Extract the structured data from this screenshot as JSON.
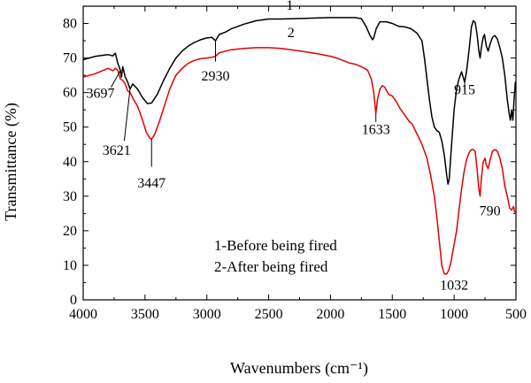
{
  "chart_data": {
    "type": "line",
    "xlabel": "Wavenumbers (cm⁻¹)",
    "ylabel": "Transmittance (%)",
    "xlim": [
      4000,
      500
    ],
    "ylim": [
      0,
      85
    ],
    "x_ticks": [
      4000,
      3500,
      3000,
      2500,
      2000,
      1500,
      1000,
      500
    ],
    "y_ticks": [
      0,
      10,
      20,
      30,
      40,
      50,
      60,
      70,
      80
    ],
    "grid": false,
    "series": [
      {
        "name": "1",
        "color": "#000000",
        "points": [
          [
            4000,
            69.5
          ],
          [
            3900,
            70.5
          ],
          [
            3800,
            71.0
          ],
          [
            3760,
            70.6
          ],
          [
            3740,
            71.4
          ],
          [
            3720,
            68.5
          ],
          [
            3700,
            66.5
          ],
          [
            3690,
            64.5
          ],
          [
            3680,
            67.5
          ],
          [
            3660,
            64.5
          ],
          [
            3640,
            63.0
          ],
          [
            3621,
            61.0
          ],
          [
            3600,
            62.5
          ],
          [
            3560,
            61.0
          ],
          [
            3520,
            58.5
          ],
          [
            3480,
            56.8
          ],
          [
            3447,
            57.0
          ],
          [
            3400,
            59.5
          ],
          [
            3350,
            63.5
          ],
          [
            3300,
            67.0
          ],
          [
            3250,
            70.0
          ],
          [
            3200,
            72.0
          ],
          [
            3150,
            73.5
          ],
          [
            3100,
            74.5
          ],
          [
            3050,
            75.3
          ],
          [
            3000,
            75.8
          ],
          [
            2960,
            76.0
          ],
          [
            2930,
            75.0
          ],
          [
            2900,
            76.8
          ],
          [
            2850,
            77.5
          ],
          [
            2800,
            78.5
          ],
          [
            2700,
            79.8
          ],
          [
            2600,
            80.8
          ],
          [
            2500,
            81.3
          ],
          [
            2400,
            81.3
          ],
          [
            2300,
            81.4
          ],
          [
            2200,
            81.5
          ],
          [
            2100,
            81.6
          ],
          [
            2000,
            81.7
          ],
          [
            1900,
            81.7
          ],
          [
            1800,
            81.7
          ],
          [
            1750,
            81.4
          ],
          [
            1710,
            79.0
          ],
          [
            1680,
            76.5
          ],
          [
            1660,
            75.3
          ],
          [
            1650,
            75.8
          ],
          [
            1630,
            78.5
          ],
          [
            1600,
            80.5
          ],
          [
            1550,
            80.5
          ],
          [
            1500,
            80.0
          ],
          [
            1450,
            79.2
          ],
          [
            1400,
            79.0
          ],
          [
            1350,
            78.5
          ],
          [
            1300,
            77.2
          ],
          [
            1260,
            75.0
          ],
          [
            1240,
            70.0
          ],
          [
            1220,
            64.0
          ],
          [
            1200,
            58.0
          ],
          [
            1180,
            53.0
          ],
          [
            1160,
            50.0
          ],
          [
            1140,
            49.0
          ],
          [
            1120,
            48.5
          ],
          [
            1100,
            46.0
          ],
          [
            1080,
            42.0
          ],
          [
            1060,
            36.0
          ],
          [
            1050,
            33.5
          ],
          [
            1040,
            35.0
          ],
          [
            1020,
            45.0
          ],
          [
            1000,
            55.0
          ],
          [
            980,
            61.0
          ],
          [
            960,
            64.0
          ],
          [
            940,
            66.0
          ],
          [
            915,
            63.0
          ],
          [
            900,
            66.0
          ],
          [
            880,
            72.0
          ],
          [
            860,
            79.0
          ],
          [
            845,
            80.8
          ],
          [
            830,
            80.3
          ],
          [
            815,
            77.0
          ],
          [
            800,
            72.0
          ],
          [
            790,
            70.0
          ],
          [
            780,
            73.0
          ],
          [
            765,
            76.0
          ],
          [
            755,
            76.8
          ],
          [
            740,
            73.5
          ],
          [
            725,
            72.0
          ],
          [
            710,
            74.0
          ],
          [
            690,
            76.0
          ],
          [
            670,
            76.5
          ],
          [
            650,
            75.5
          ],
          [
            630,
            73.0
          ],
          [
            610,
            70.0
          ],
          [
            590,
            65.0
          ],
          [
            570,
            58.0
          ],
          [
            555,
            54.0
          ],
          [
            545,
            52.0
          ],
          [
            535,
            55.0
          ],
          [
            525,
            52.0
          ],
          [
            515,
            58.0
          ],
          [
            505,
            63.0
          ],
          [
            500,
            63.0
          ]
        ]
      },
      {
        "name": "2",
        "color": "#e00000",
        "points": [
          [
            4000,
            64.5
          ],
          [
            3900,
            65.5
          ],
          [
            3800,
            67.0
          ],
          [
            3760,
            66.3
          ],
          [
            3740,
            67.0
          ],
          [
            3720,
            66.5
          ],
          [
            3700,
            64.0
          ],
          [
            3680,
            63.5
          ],
          [
            3660,
            62.5
          ],
          [
            3640,
            60.5
          ],
          [
            3621,
            60.0
          ],
          [
            3600,
            58.5
          ],
          [
            3560,
            56.0
          ],
          [
            3520,
            52.0
          ],
          [
            3490,
            48.5
          ],
          [
            3460,
            46.8
          ],
          [
            3447,
            46.5
          ],
          [
            3420,
            48.0
          ],
          [
            3380,
            52.0
          ],
          [
            3340,
            56.5
          ],
          [
            3300,
            61.0
          ],
          [
            3250,
            65.0
          ],
          [
            3200,
            67.0
          ],
          [
            3150,
            68.5
          ],
          [
            3100,
            69.3
          ],
          [
            3050,
            69.8
          ],
          [
            3000,
            70.0
          ],
          [
            2960,
            70.2
          ],
          [
            2930,
            70.5
          ],
          [
            2900,
            71.5
          ],
          [
            2850,
            72.0
          ],
          [
            2800,
            72.4
          ],
          [
            2700,
            72.8
          ],
          [
            2600,
            73.0
          ],
          [
            2500,
            73.0
          ],
          [
            2400,
            72.8
          ],
          [
            2300,
            72.3
          ],
          [
            2200,
            71.8
          ],
          [
            2100,
            71.2
          ],
          [
            2000,
            70.5
          ],
          [
            1950,
            70.0
          ],
          [
            1900,
            69.3
          ],
          [
            1850,
            68.6
          ],
          [
            1800,
            68.2
          ],
          [
            1750,
            67.5
          ],
          [
            1700,
            66.5
          ],
          [
            1670,
            64.0
          ],
          [
            1650,
            60.0
          ],
          [
            1633,
            54.0
          ],
          [
            1620,
            58.0
          ],
          [
            1600,
            61.0
          ],
          [
            1580,
            62.0
          ],
          [
            1560,
            61.5
          ],
          [
            1530,
            59.5
          ],
          [
            1500,
            59.0
          ],
          [
            1470,
            57.5
          ],
          [
            1440,
            55.5
          ],
          [
            1400,
            53.5
          ],
          [
            1380,
            52.5
          ],
          [
            1360,
            51.5
          ],
          [
            1340,
            51.0
          ],
          [
            1300,
            48.0
          ],
          [
            1260,
            45.0
          ],
          [
            1220,
            41.0
          ],
          [
            1190,
            36.0
          ],
          [
            1160,
            30.0
          ],
          [
            1140,
            24.0
          ],
          [
            1120,
            17.0
          ],
          [
            1100,
            10.0
          ],
          [
            1080,
            7.5
          ],
          [
            1060,
            7.5
          ],
          [
            1045,
            8.5
          ],
          [
            1032,
            10.0
          ],
          [
            1020,
            12.0
          ],
          [
            1000,
            16.0
          ],
          [
            980,
            20.0
          ],
          [
            960,
            26.0
          ],
          [
            940,
            32.0
          ],
          [
            920,
            37.0
          ],
          [
            900,
            40.5
          ],
          [
            880,
            42.5
          ],
          [
            860,
            43.5
          ],
          [
            845,
            43.5
          ],
          [
            830,
            43.0
          ],
          [
            815,
            38.0
          ],
          [
            800,
            32.0
          ],
          [
            790,
            30.0
          ],
          [
            780,
            35.0
          ],
          [
            765,
            40.0
          ],
          [
            750,
            41.0
          ],
          [
            740,
            39.0
          ],
          [
            725,
            38.0
          ],
          [
            710,
            40.5
          ],
          [
            690,
            43.0
          ],
          [
            670,
            43.5
          ],
          [
            650,
            43.0
          ],
          [
            630,
            41.0
          ],
          [
            610,
            38.0
          ],
          [
            590,
            33.0
          ],
          [
            570,
            30.0
          ],
          [
            550,
            26.5
          ],
          [
            535,
            26.0
          ],
          [
            520,
            27.0
          ],
          [
            510,
            25.5
          ],
          [
            500,
            25.0
          ]
        ]
      }
    ],
    "curve_labels": [
      {
        "text": "1",
        "x": 2330,
        "y": 84.0
      },
      {
        "text": "2",
        "x": 2320,
        "y": 76.0
      }
    ],
    "annotations": [
      {
        "text": "3697",
        "text_x": 3860,
        "text_y": 58.5,
        "line": [
          [
            3697,
            66.5
          ],
          [
            3775,
            61.5
          ]
        ]
      },
      {
        "text": "3621",
        "text_x": 3730,
        "text_y": 42.0,
        "line": [
          [
            3621,
            61.0
          ],
          [
            3668,
            46.0
          ]
        ]
      },
      {
        "text": "3447",
        "text_x": 3447,
        "text_y": 32.5,
        "line": [
          [
            3447,
            46.5
          ],
          [
            3447,
            38.5
          ]
        ]
      },
      {
        "text": "2930",
        "text_x": 2930,
        "text_y": 63.5,
        "line": [
          [
            2930,
            75.0
          ],
          [
            2930,
            69.0
          ]
        ]
      },
      {
        "text": "1633",
        "text_x": 1633,
        "text_y": 48.0,
        "line": [
          [
            1633,
            54.0
          ],
          [
            1633,
            51.5
          ]
        ]
      },
      {
        "text": "915",
        "text_x": 915,
        "text_y": 59.5,
        "line": [
          [
            915,
            63.0
          ],
          [
            915,
            61.0
          ]
        ]
      },
      {
        "text": "1032",
        "text_x": 1000,
        "text_y": 3.0,
        "line": null
      },
      {
        "text": "790",
        "text_x": 710,
        "text_y": 24.5,
        "line": null
      }
    ],
    "legend": {
      "position": "bottom-center",
      "lines": [
        "1-Before being fired",
        "2-After being fired"
      ]
    }
  }
}
